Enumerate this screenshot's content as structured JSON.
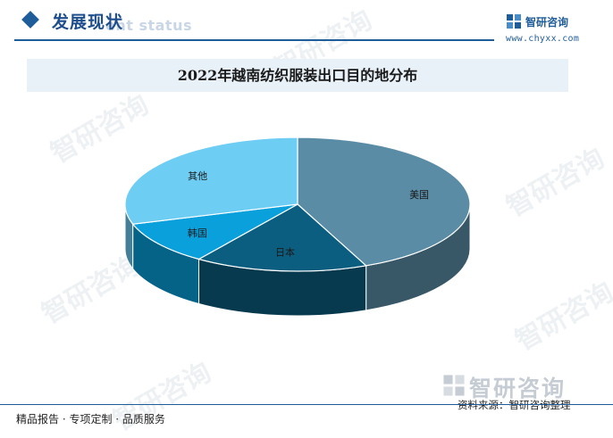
{
  "header": {
    "section_title": "发展现状",
    "section_subtitle": "ent status",
    "brand_name": "智研咨询",
    "brand_url": "www.chyxx.com"
  },
  "watermark": {
    "text": "智研咨询"
  },
  "chart_data": {
    "type": "pie",
    "title": "2022年越南纺织服装出口目的地分布",
    "categories": [
      "美国",
      "日本",
      "韩国",
      "其他"
    ],
    "values": [
      43.5,
      16.2,
      10.5,
      29.8
    ],
    "colors": [
      "#5b8ca6",
      "#0b5e80",
      "#0aa0dc",
      "#6dcdf3"
    ],
    "style": "3d-pie"
  },
  "footer": {
    "left_text": "精品报告 · 专项定制 · 品质服务",
    "brand_name": "智研咨询",
    "source_text": "资料来源：智研咨询整理"
  }
}
